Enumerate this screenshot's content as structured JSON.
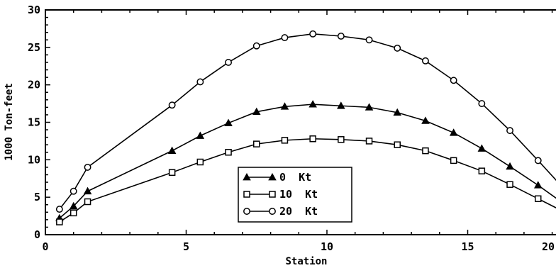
{
  "chart_data": {
    "type": "line",
    "title": "",
    "xlabel": "Station",
    "ylabel": "1000 Ton-feet",
    "xlim": [
      0,
      20
    ],
    "ylim": [
      0,
      30
    ],
    "xticks": [
      0,
      5,
      10,
      15,
      20
    ],
    "yticks": [
      0,
      5,
      10,
      15,
      20,
      25,
      30
    ],
    "grid": false,
    "legend_position": "lower-center",
    "series": [
      {
        "name": "0  Kt",
        "marker": "triangle-filled",
        "x": [
          0.5,
          1,
          1.5,
          4.5,
          5.5,
          6.5,
          7.5,
          8.5,
          9.5,
          10.5,
          11.5,
          12.5,
          13.5,
          14.5,
          15.5,
          16.5,
          17.5,
          18.5,
          19.5,
          20
        ],
        "y": [
          2.2,
          3.8,
          5.8,
          11.2,
          13.2,
          14.9,
          16.4,
          17.1,
          17.4,
          17.2,
          17.0,
          16.3,
          15.2,
          13.6,
          11.5,
          9.1,
          6.6,
          3.9,
          1.3,
          0.2
        ]
      },
      {
        "name": "10  Kt",
        "marker": "square-open",
        "x": [
          0.5,
          1,
          1.5,
          4.5,
          5.5,
          6.5,
          7.5,
          8.5,
          9.5,
          10.5,
          11.5,
          12.5,
          13.5,
          14.5,
          15.5,
          16.5,
          17.5,
          18.5,
          19.5,
          20
        ],
        "y": [
          1.7,
          2.9,
          4.4,
          8.3,
          9.7,
          11.0,
          12.1,
          12.6,
          12.8,
          12.7,
          12.5,
          12.0,
          11.2,
          9.9,
          8.5,
          6.7,
          4.8,
          2.9,
          1.0,
          0.2
        ]
      },
      {
        "name": "20  Kt",
        "marker": "circle-open",
        "x": [
          0.5,
          1,
          1.5,
          4.5,
          5.5,
          6.5,
          7.5,
          8.5,
          9.5,
          10.5,
          11.5,
          12.5,
          13.5,
          14.5,
          15.5,
          16.5,
          17.5,
          18.5,
          19.5,
          20
        ],
        "y": [
          3.4,
          5.8,
          9.0,
          17.3,
          20.4,
          23.0,
          25.2,
          26.3,
          26.8,
          26.5,
          26.0,
          24.9,
          23.2,
          20.6,
          17.5,
          13.9,
          9.9,
          5.8,
          2.3,
          0.3
        ]
      }
    ]
  }
}
